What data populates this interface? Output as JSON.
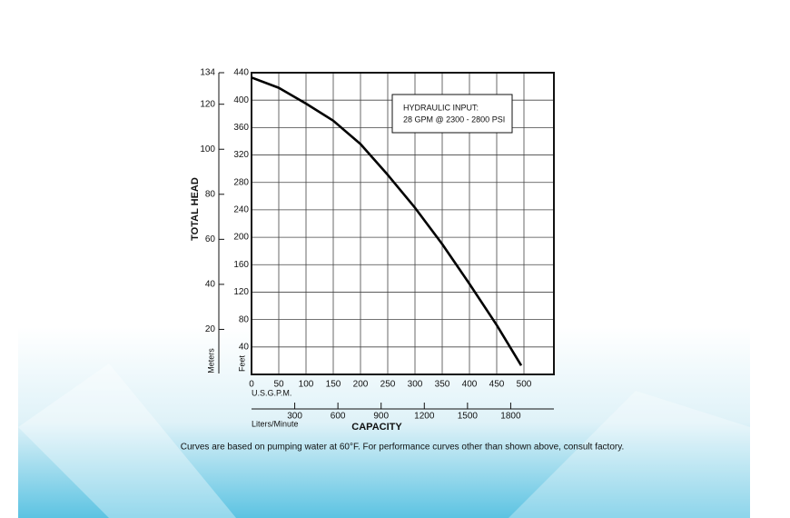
{
  "chart_data": {
    "type": "line",
    "y_label": "TOTAL HEAD",
    "y_unit": "Feet",
    "y2_unit": "Meters",
    "x_unit": "U.S.G.P.M.",
    "x2_unit": "Liters/Minute",
    "x_label": "CAPACITY",
    "annotation": [
      "HYDRAULIC INPUT:",
      "28 GPM @ 2300 - 2800 PSI"
    ],
    "footnote": "Curves are based on pumping water at 60°F. For performance curves other than shown above, consult factory.",
    "x": [
      0,
      50,
      100,
      150,
      200,
      250,
      300,
      350,
      400,
      450,
      495
    ],
    "series": [
      {
        "color": "#000000",
        "values": [
          433,
          418,
          395,
          370,
          336,
          291,
          243,
          190,
          132,
          72,
          13
        ]
      }
    ],
    "xlim": [
      0,
      555
    ],
    "xticks": [
      0,
      50,
      100,
      150,
      200,
      250,
      300,
      350,
      400,
      450,
      500
    ],
    "x2lim": [
      0,
      2100
    ],
    "x2ticks": [
      300,
      600,
      900,
      1200,
      1500,
      1800
    ],
    "ylim": [
      0,
      440
    ],
    "yticks": [
      40,
      80,
      120,
      160,
      200,
      240,
      280,
      320,
      360,
      400,
      440
    ],
    "y2lim": [
      0,
      134
    ],
    "y2ticks": [
      20,
      40,
      60,
      80,
      100,
      120,
      134
    ],
    "grid": true
  }
}
